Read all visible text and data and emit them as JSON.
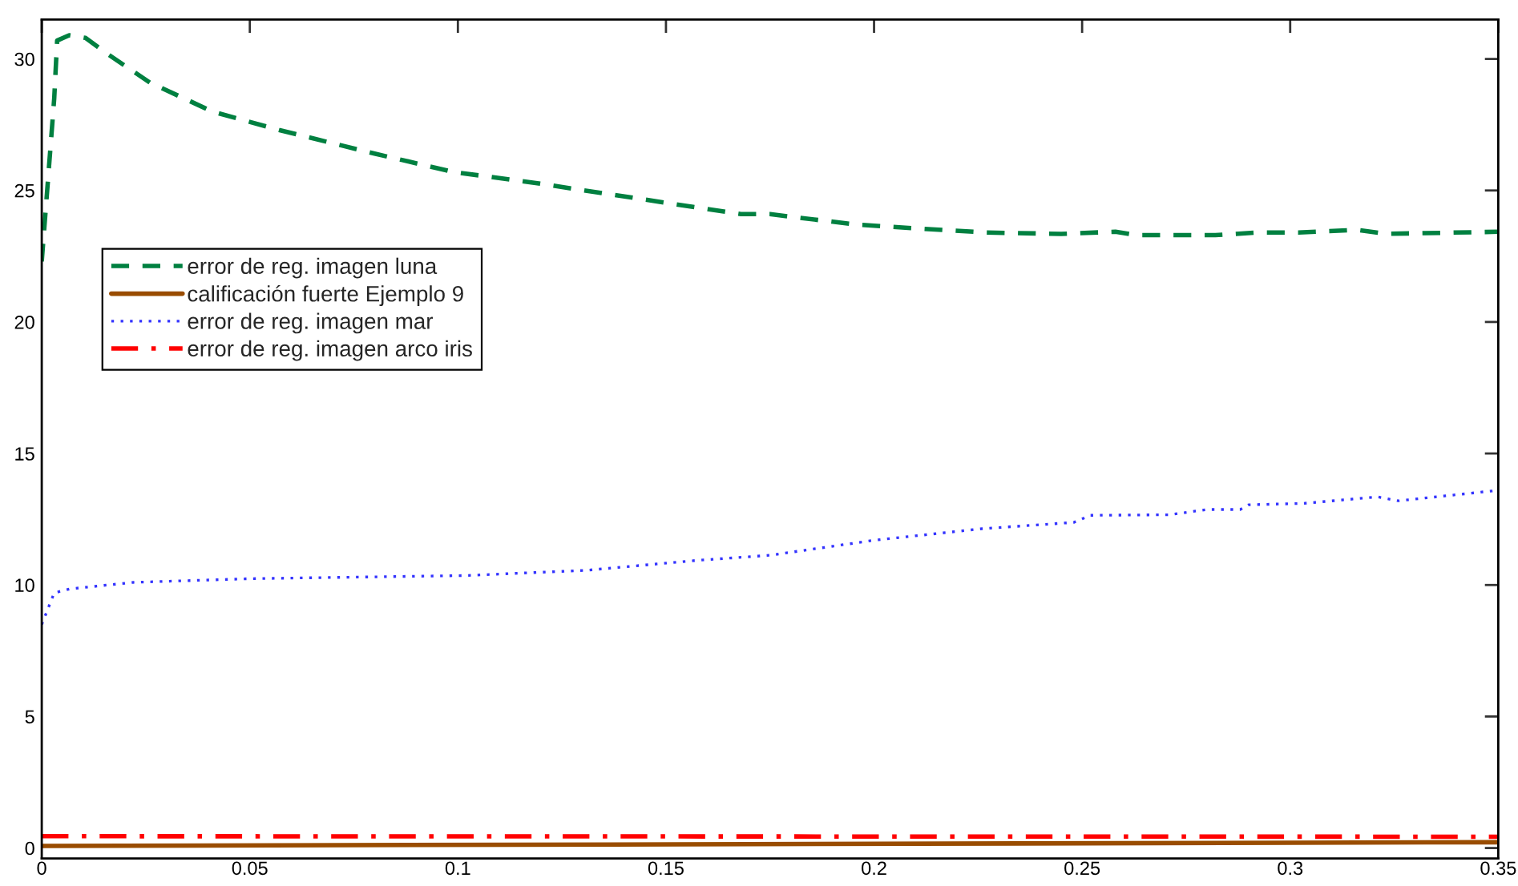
{
  "chart_data": {
    "type": "line",
    "xlim": [
      0,
      0.35
    ],
    "xticks": [
      0,
      0.05,
      0.1,
      0.15,
      0.2,
      0.25,
      0.3,
      0.35
    ],
    "ylim": [
      -0.4,
      31.5
    ],
    "yticks": [
      0,
      5,
      10,
      15,
      20,
      25,
      30
    ],
    "grid": false,
    "legend": "left",
    "marker": "none",
    "series": [
      {
        "name": "error de reg. imagen luna",
        "color": "#008040",
        "line_style": "dashed",
        "x": [
          0,
          0.003,
          0.0037,
          0.0066,
          0.0105,
          0.0157,
          0.026,
          0.041,
          0.057,
          0.08,
          0.099,
          0.118,
          0.143,
          0.168,
          0.175,
          0.18,
          0.196,
          0.211,
          0.227,
          0.245,
          0.258,
          0.263,
          0.282,
          0.292,
          0.302,
          0.316,
          0.323,
          0.35
        ],
        "values": [
          22.3,
          28.5,
          30.7,
          30.9,
          30.8,
          30.2,
          29.1,
          28.0,
          27.3,
          26.4,
          25.7,
          25.3,
          24.7,
          24.1,
          24.1,
          24.0,
          23.7,
          23.55,
          23.4,
          23.35,
          23.43,
          23.3,
          23.3,
          23.4,
          23.4,
          23.5,
          23.35,
          23.43
        ]
      },
      {
        "name": "calificación fuerte Ejemplo 9",
        "color": "#994c00",
        "line_style": "solid",
        "x": [
          0,
          0.35
        ],
        "values": [
          0.08,
          0.22
        ]
      },
      {
        "name": "error de reg. imagen mar",
        "color": "#3333ff",
        "line_style": "dotted",
        "x": [
          0,
          0.003,
          0.0067,
          0.022,
          0.05,
          0.102,
          0.131,
          0.157,
          0.175,
          0.2,
          0.226,
          0.248,
          0.252,
          0.271,
          0.28,
          0.288,
          0.29,
          0.303,
          0.321,
          0.326,
          0.35
        ],
        "values": [
          8.5,
          9.7,
          9.85,
          10.1,
          10.24,
          10.36,
          10.56,
          10.93,
          11.13,
          11.7,
          12.14,
          12.38,
          12.65,
          12.67,
          12.87,
          12.87,
          13.05,
          13.1,
          13.35,
          13.2,
          13.6
        ]
      },
      {
        "name": "error de reg. imagen arco iris",
        "color": "#ff0000",
        "line_style": "dashdot",
        "x": [
          0,
          0.35
        ],
        "values": [
          0.45,
          0.43
        ]
      }
    ]
  }
}
